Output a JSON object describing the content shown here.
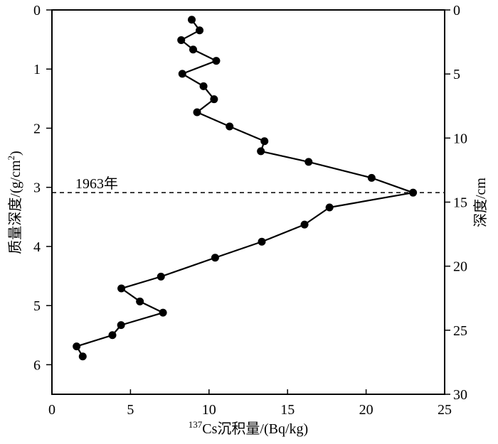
{
  "chart_data": {
    "type": "line",
    "title": "",
    "xlabel_sup": "137",
    "xlabel": "Cs沉积量/(Bq/kg)",
    "ylabel": "质量深度/(g/cm",
    "ylabel_sup": "2",
    "ylabel_end": ")",
    "y2label": "深度/cm",
    "xlim": [
      0,
      25
    ],
    "ylim": [
      0,
      6.5
    ],
    "y2lim": [
      0,
      30
    ],
    "y_inverted": true,
    "xticks": [
      "0",
      "5",
      "10",
      "15",
      "20",
      "25"
    ],
    "yticks": [
      "0",
      "1",
      "2",
      "3",
      "4",
      "5",
      "6"
    ],
    "y2ticks": [
      "0",
      "5",
      "10",
      "15",
      "20",
      "25",
      "30"
    ],
    "grid": false,
    "annotation": {
      "text": "1963年",
      "y": 3.09
    },
    "series": [
      {
        "name": "137Cs",
        "x": [
          8.9,
          9.4,
          8.23,
          8.99,
          10.46,
          8.3,
          9.65,
          10.32,
          9.24,
          11.31,
          13.53,
          13.3,
          16.34,
          20.35,
          22.99,
          17.67,
          16.08,
          13.36,
          10.39,
          6.94,
          4.42,
          5.6,
          7.07,
          4.4,
          3.85,
          1.57,
          1.96
        ],
        "y": [
          0.165,
          0.345,
          0.51,
          0.67,
          0.86,
          1.08,
          1.29,
          1.51,
          1.73,
          1.97,
          2.22,
          2.39,
          2.57,
          2.84,
          3.09,
          3.34,
          3.63,
          3.92,
          4.19,
          4.51,
          4.71,
          4.93,
          5.12,
          5.33,
          5.5,
          5.69,
          5.86
        ]
      }
    ]
  }
}
